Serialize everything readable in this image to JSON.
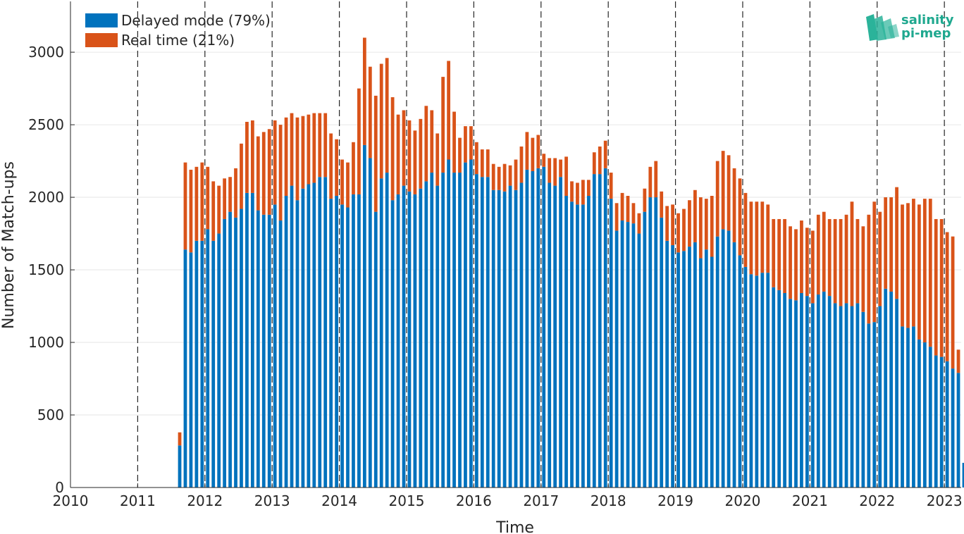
{
  "colors": {
    "delayed": "#0072BD",
    "realtime": "#D95319",
    "logo_text": "#1FA88F",
    "logo_mark": "#2BB39A"
  },
  "logo": {
    "line1": "salinity",
    "line2": "pi-mep"
  },
  "chart_data": {
    "type": "bar",
    "stacked": true,
    "xlabel": "Time",
    "ylabel": "Number of Match-ups",
    "xlim": [
      2010,
      2023.25
    ],
    "ylim": [
      0,
      3350
    ],
    "xticks": [
      "2010",
      "2011",
      "2012",
      "2013",
      "2014",
      "2015",
      "2016",
      "2017",
      "2018",
      "2019",
      "2020",
      "2021",
      "2022",
      "2023"
    ],
    "yticks": [
      "0",
      "500",
      "1000",
      "1500",
      "2000",
      "2500",
      "3000"
    ],
    "ytick_values": [
      0,
      500,
      1000,
      1500,
      2000,
      2500,
      3000
    ],
    "year_divider_lines": "dashed vertical at each January 1",
    "grid": "horizontal light",
    "legend": {
      "location": "top-left",
      "entries": [
        "Delayed mode (79%)",
        "Real time (21%)"
      ]
    },
    "bar_width_months": 0.6,
    "start": "2011-08",
    "months": [
      "2011-08",
      "2011-09",
      "2011-10",
      "2011-11",
      "2011-12",
      "2012-01",
      "2012-02",
      "2012-03",
      "2012-04",
      "2012-05",
      "2012-06",
      "2012-07",
      "2012-08",
      "2012-09",
      "2012-10",
      "2012-11",
      "2012-12",
      "2013-01",
      "2013-02",
      "2013-03",
      "2013-04",
      "2013-05",
      "2013-06",
      "2013-07",
      "2013-08",
      "2013-09",
      "2013-10",
      "2013-11",
      "2013-12",
      "2014-01",
      "2014-02",
      "2014-03",
      "2014-04",
      "2014-05",
      "2014-06",
      "2014-07",
      "2014-08",
      "2014-09",
      "2014-10",
      "2014-11",
      "2014-12",
      "2015-01",
      "2015-02",
      "2015-03",
      "2015-04",
      "2015-05",
      "2015-06",
      "2015-07",
      "2015-08",
      "2015-09",
      "2015-10",
      "2015-11",
      "2015-12",
      "2016-01",
      "2016-02",
      "2016-03",
      "2016-04",
      "2016-05",
      "2016-06",
      "2016-07",
      "2016-08",
      "2016-09",
      "2016-10",
      "2016-11",
      "2016-12",
      "2017-01",
      "2017-02",
      "2017-03",
      "2017-04",
      "2017-05",
      "2017-06",
      "2017-07",
      "2017-08",
      "2017-09",
      "2017-10",
      "2017-11",
      "2017-12",
      "2018-01",
      "2018-02",
      "2018-03",
      "2018-04",
      "2018-05",
      "2018-06",
      "2018-07",
      "2018-08",
      "2018-09",
      "2018-10",
      "2018-11",
      "2018-12",
      "2019-01",
      "2019-02",
      "2019-03",
      "2019-04",
      "2019-05",
      "2019-06",
      "2019-07",
      "2019-08",
      "2019-09",
      "2019-10",
      "2019-11",
      "2019-12",
      "2020-01",
      "2020-02",
      "2020-03",
      "2020-04",
      "2020-05",
      "2020-06",
      "2020-07",
      "2020-08",
      "2020-09",
      "2020-10",
      "2020-11",
      "2020-12",
      "2021-01",
      "2021-02",
      "2021-03",
      "2021-04",
      "2021-05",
      "2021-06",
      "2021-07",
      "2021-08",
      "2021-09",
      "2021-10",
      "2021-11",
      "2021-12",
      "2022-01",
      "2022-02",
      "2022-03",
      "2022-04",
      "2022-05",
      "2022-06",
      "2022-07",
      "2022-08",
      "2022-09",
      "2022-10",
      "2022-11",
      "2022-12",
      "2023-01",
      "2023-02",
      "2023-03",
      "2023-04"
    ],
    "series": [
      {
        "name": "Delayed mode (79%)",
        "values": [
          290,
          1640,
          1620,
          1700,
          1700,
          1780,
          1700,
          1750,
          1850,
          1900,
          1860,
          1920,
          2030,
          2030,
          1910,
          1880,
          1880,
          1950,
          1840,
          2010,
          2080,
          1980,
          2060,
          2090,
          2100,
          2140,
          2140,
          1990,
          2010,
          1950,
          1930,
          2020,
          2020,
          2360,
          2270,
          1900,
          2130,
          2170,
          1980,
          2020,
          2080,
          2040,
          2020,
          2060,
          2110,
          2170,
          2080,
          2170,
          2260,
          2170,
          2170,
          2240,
          2260,
          2160,
          2140,
          2140,
          2050,
          2050,
          2040,
          2080,
          2050,
          2100,
          2190,
          2180,
          2200,
          2210,
          2100,
          2080,
          2140,
          2010,
          1970,
          1950,
          1950,
          2010,
          2160,
          2160,
          2200,
          1990,
          1770,
          1840,
          1830,
          1820,
          1750,
          1900,
          2000,
          2000,
          1860,
          1700,
          1670,
          1620,
          1630,
          1660,
          1690,
          1580,
          1640,
          1590,
          1730,
          1780,
          1770,
          1690,
          1600,
          1520,
          1470,
          1460,
          1480,
          1480,
          1380,
          1360,
          1340,
          1300,
          1290,
          1340,
          1320,
          1270,
          1330,
          1350,
          1320,
          1270,
          1250,
          1270,
          1250,
          1270,
          1210,
          1130,
          1140,
          1250,
          1370,
          1350,
          1300,
          1110,
          1100,
          1110,
          1020,
          1000,
          970,
          910,
          900,
          870,
          820,
          790,
          170
        ]
      },
      {
        "name": "Real time (21%)",
        "values": [
          90,
          600,
          570,
          510,
          540,
          430,
          410,
          330,
          280,
          240,
          340,
          450,
          490,
          500,
          510,
          570,
          590,
          580,
          660,
          540,
          500,
          570,
          500,
          480,
          480,
          440,
          440,
          450,
          390,
          310,
          310,
          360,
          730,
          740,
          630,
          800,
          790,
          790,
          710,
          550,
          520,
          490,
          440,
          480,
          520,
          430,
          360,
          660,
          680,
          420,
          240,
          250,
          230,
          220,
          190,
          190,
          180,
          160,
          190,
          140,
          210,
          250,
          260,
          230,
          230,
          90,
          170,
          190,
          120,
          270,
          140,
          150,
          170,
          110,
          150,
          190,
          190,
          180,
          190,
          190,
          180,
          140,
          140,
          160,
          210,
          250,
          180,
          240,
          280,
          270,
          290,
          320,
          360,
          420,
          350,
          420,
          520,
          540,
          520,
          510,
          530,
          510,
          500,
          510,
          490,
          470,
          470,
          490,
          510,
          500,
          490,
          500,
          470,
          500,
          550,
          550,
          530,
          580,
          600,
          610,
          720,
          580,
          590,
          750,
          830,
          650,
          630,
          650,
          770,
          840,
          860,
          880,
          930,
          990,
          1020,
          940,
          950,
          890,
          910,
          160
        ]
      }
    ]
  }
}
